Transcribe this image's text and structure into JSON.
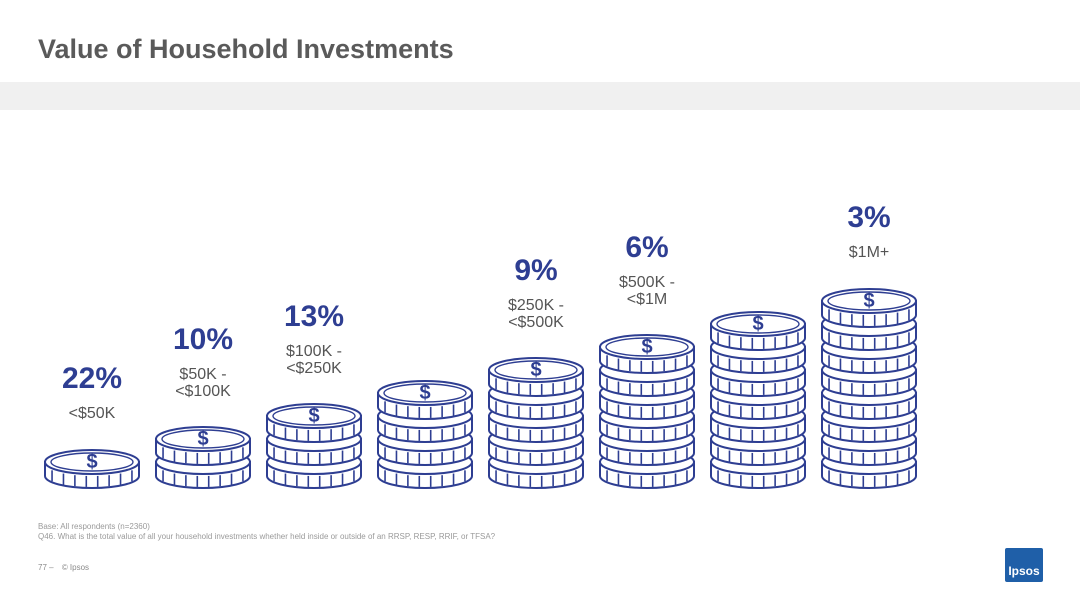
{
  "page": {
    "title": "Value of Household Investments",
    "base_note": "Base: All respondents (n=2360)",
    "question_note": "Q46. What is the total value of all your household investments whether held inside or outside of an RRSP, RESP, RRIF, or TFSA?",
    "page_number": "77 –",
    "copyright": "© Ipsos",
    "logo_text": "Ipsos"
  },
  "colors": {
    "accent": "#2e3e92",
    "coin_fill": "#ffffff",
    "label": "#555555"
  },
  "chart_data": {
    "type": "bar",
    "categories": [
      "<$50K",
      "$50K - <$100K",
      "$100K - <$250K",
      "",
      "$250K - <$500K",
      "$500K - <$1M",
      "",
      "$1M+"
    ],
    "values": [
      22,
      10,
      13,
      null,
      9,
      6,
      null,
      3
    ],
    "value_labels": [
      "22%",
      "10%",
      "13%",
      "",
      "9%",
      "6%",
      "",
      "3%"
    ],
    "coin_counts": [
      1,
      2,
      3,
      4,
      5,
      6,
      7,
      8
    ],
    "unit": "%"
  }
}
